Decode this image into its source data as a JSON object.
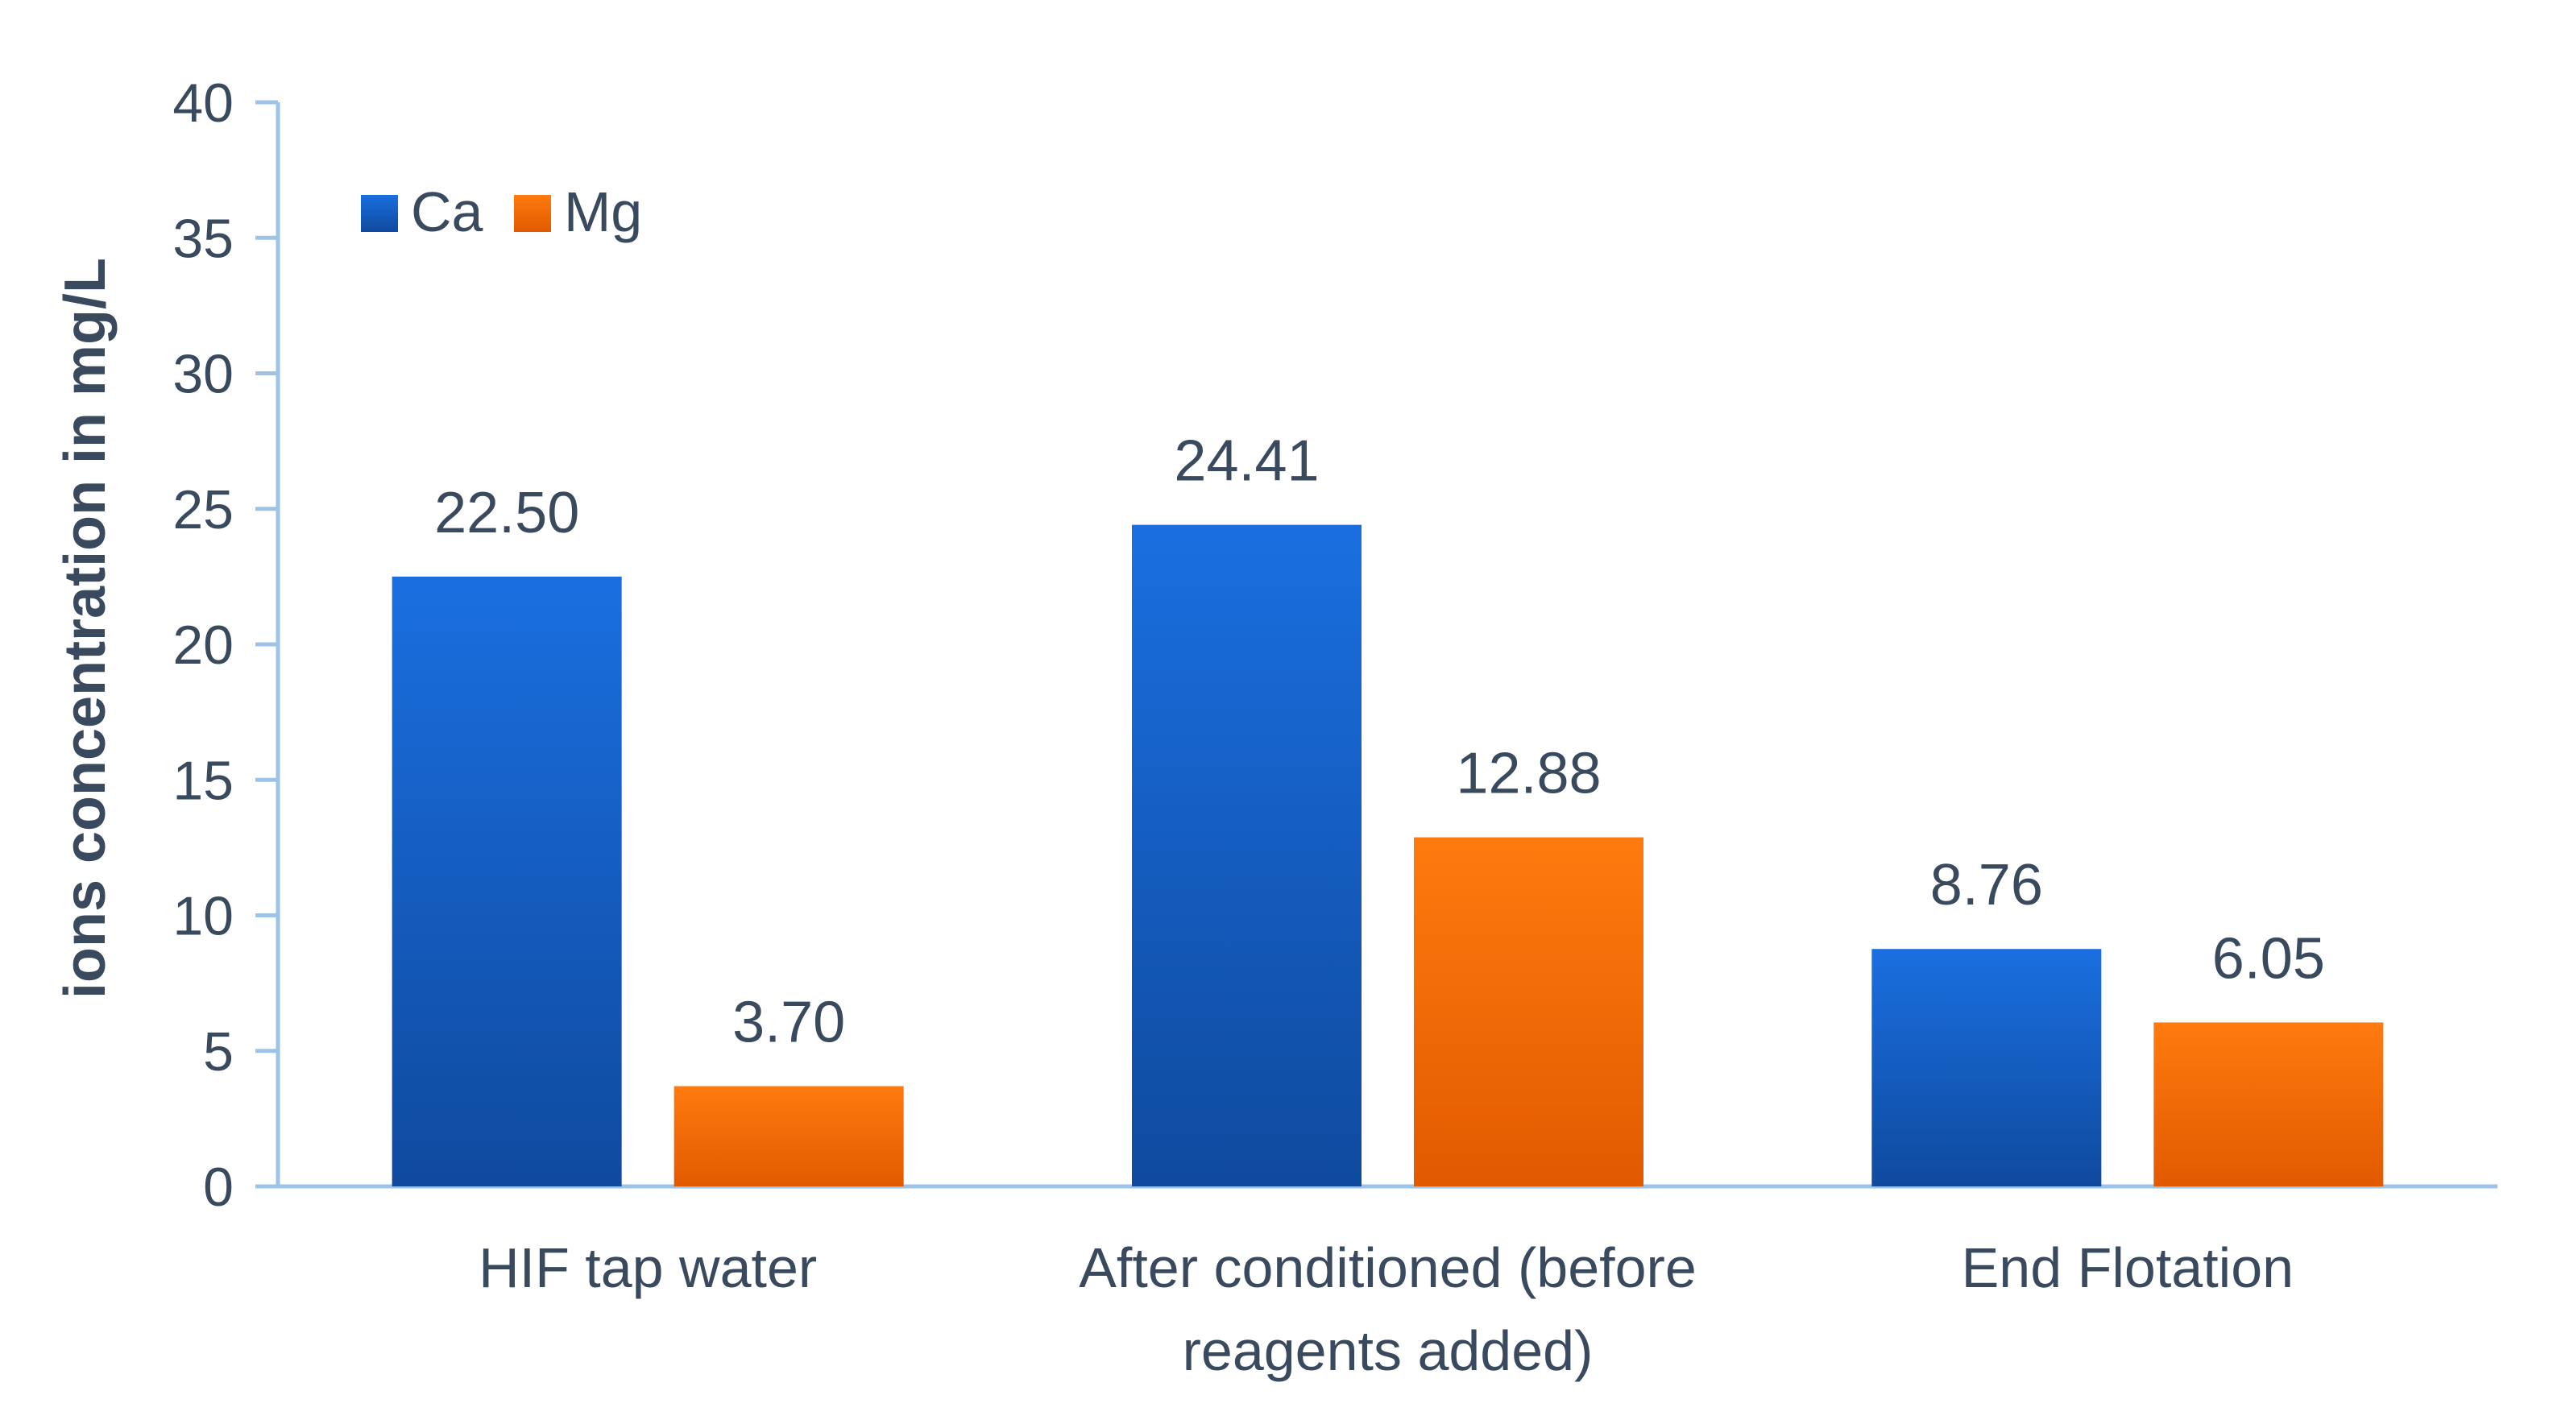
{
  "chart_data": {
    "type": "bar",
    "title": "",
    "xlabel": "",
    "ylabel": "ions concentration in mg/L",
    "ylim": [
      0,
      40
    ],
    "yticks": [
      0,
      5,
      10,
      15,
      20,
      25,
      30,
      35,
      40
    ],
    "categories": [
      [
        "HIF tap water"
      ],
      [
        "After conditioned (before",
        "reagents added)"
      ],
      [
        "End Flotation"
      ]
    ],
    "series": [
      {
        "name": "Ca",
        "values": [
          22.5,
          24.41,
          8.76
        ],
        "labels": [
          "22.50",
          "24.41",
          "8.76"
        ],
        "color_top": "#1a6fe0",
        "color_bottom": "#0f4a9e"
      },
      {
        "name": "Mg",
        "values": [
          3.7,
          12.88,
          6.05
        ],
        "labels": [
          "3.70",
          "12.88",
          "6.05"
        ],
        "color_top": "#ff7a0f",
        "color_bottom": "#e25a00"
      }
    ],
    "legend_position": "top-left",
    "axis_color": "#9cc3e8",
    "grid": false
  }
}
